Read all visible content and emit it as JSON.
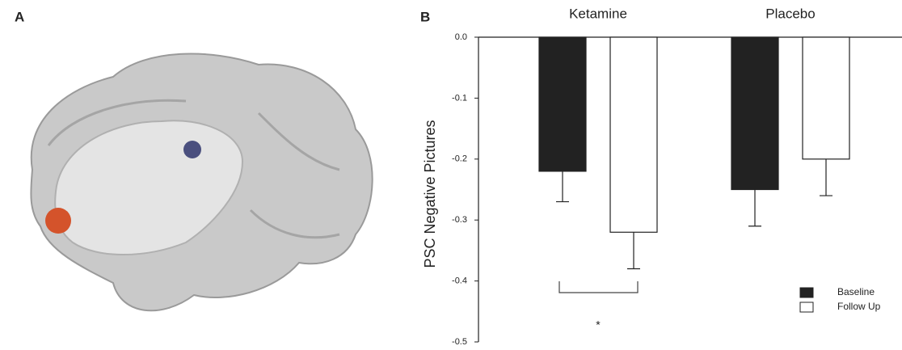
{
  "panel_labels": [
    "A",
    "B"
  ],
  "chart_data": {
    "type": "bar",
    "categories": [
      "Ketamine",
      "Placebo"
    ],
    "series": [
      {
        "name": "Baseline",
        "color": "#222222",
        "values": [
          -0.22,
          -0.25
        ],
        "errors": [
          0.05,
          0.06
        ]
      },
      {
        "name": "Follow Up",
        "color": "#ffffff",
        "values": [
          -0.32,
          -0.2
        ],
        "errors": [
          0.06,
          0.06
        ]
      }
    ],
    "ylabel": "PSC Negative Pictures",
    "ylim": [
      -0.5,
      0
    ],
    "yticks": [
      {
        "value": 0,
        "label": "0.0"
      },
      -0.1,
      -0.2,
      -0.3,
      -0.4,
      -0.5
    ],
    "annotation": "*",
    "legend": "lower right"
  }
}
